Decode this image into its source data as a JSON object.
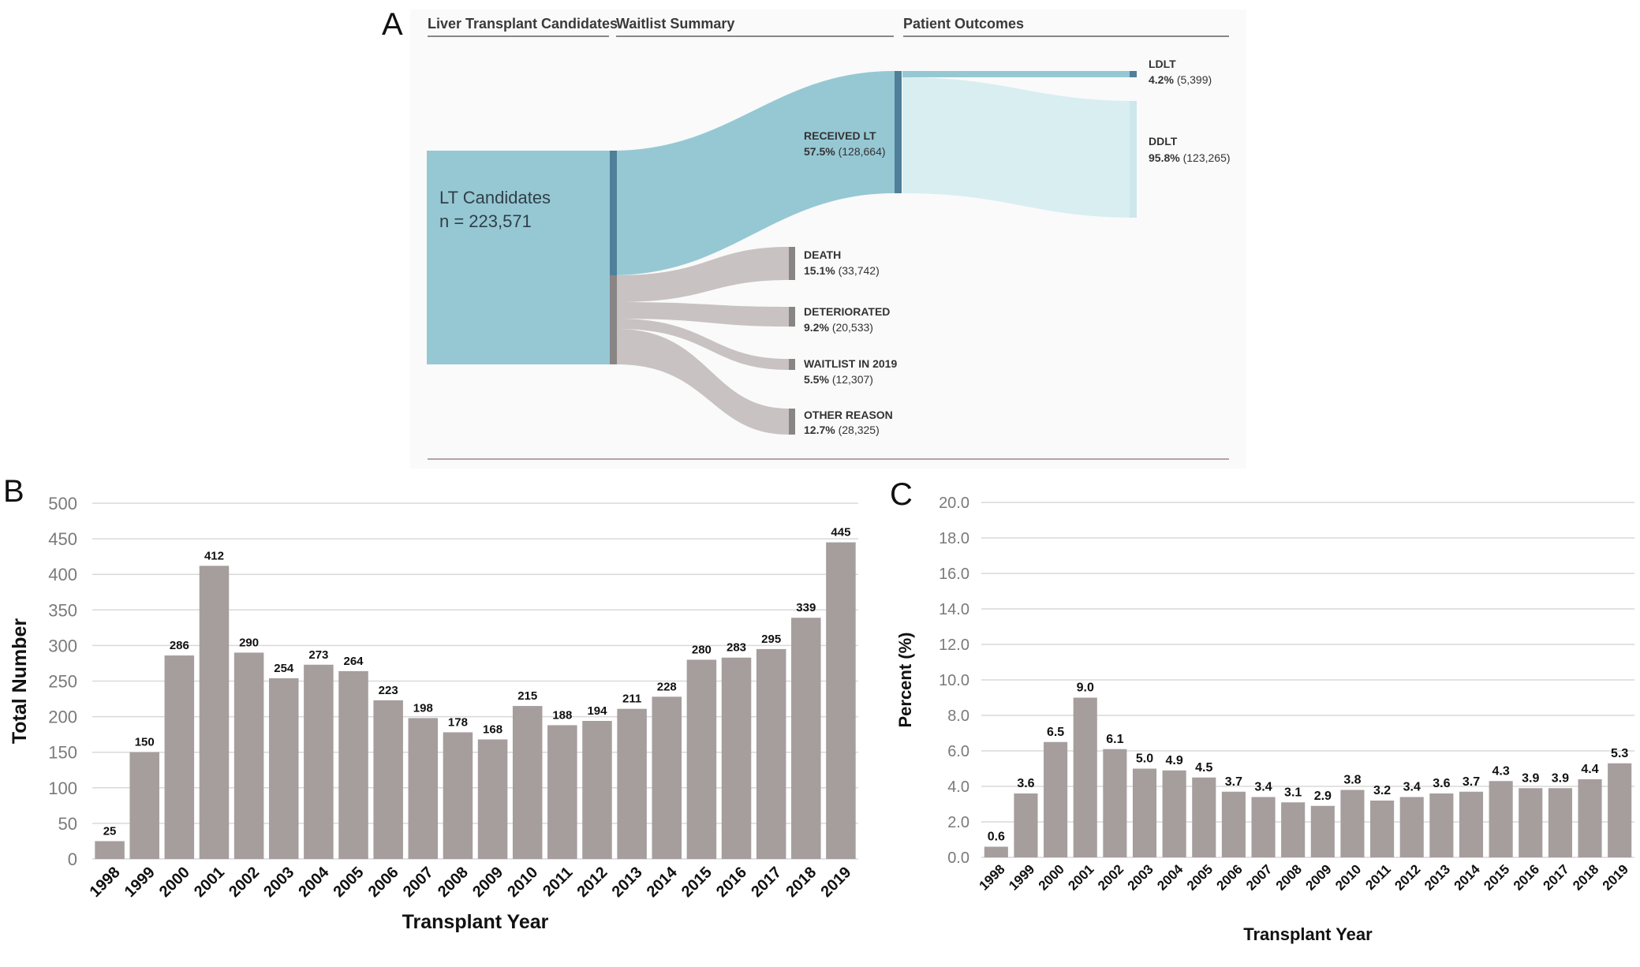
{
  "panels": {
    "a": "A",
    "b": "B",
    "c": "C"
  },
  "sankey": {
    "headers": [
      "Liver Transplant Candidates",
      "Waitlist Summary",
      "Patient Outcomes"
    ],
    "source": {
      "label": "LT Candidates",
      "n": "n = 223,571"
    },
    "received": {
      "label": "RECEIVED LT",
      "pct": "57.5%",
      "count": "(128,664)"
    },
    "outcomes": [
      {
        "label": "DEATH",
        "pct": "15.1%",
        "count": "(33,742)"
      },
      {
        "label": "DETERIORATED",
        "pct": "9.2%",
        "count": "(20,533)"
      },
      {
        "label": "WAITLIST IN 2019",
        "pct": "5.5%",
        "count": "(12,307)"
      },
      {
        "label": "OTHER REASON",
        "pct": "12.7%",
        "count": "(28,325)"
      }
    ],
    "transplant_types": [
      {
        "label": "LDLT",
        "pct": "4.2%",
        "count": "(5,399)"
      },
      {
        "label": "DDLT",
        "pct": "95.8%",
        "count": "(123,265)"
      }
    ],
    "colors": {
      "blue": "#96c8d4",
      "blue_dark": "#4f7f99",
      "light_blue": "#cde7ec",
      "grey": "#c8c2c2",
      "grey_dark": "#8a8585"
    }
  },
  "chart_data": [
    {
      "type": "bar",
      "panel": "B",
      "title": "",
      "xlabel": "Transplant Year",
      "ylabel": "Total Number",
      "ylim": [
        0,
        500
      ],
      "yticks": [
        0,
        50,
        100,
        150,
        200,
        250,
        300,
        350,
        400,
        450,
        500
      ],
      "ytick_labels": [
        "0",
        "50",
        "100",
        "150",
        "200",
        "250",
        "300",
        "350",
        "400",
        "450",
        "500"
      ],
      "categories": [
        "1998",
        "1999",
        "2000",
        "2001",
        "2002",
        "2003",
        "2004",
        "2005",
        "2006",
        "2007",
        "2008",
        "2009",
        "2010",
        "2011",
        "2012",
        "2013",
        "2014",
        "2015",
        "2016",
        "2017",
        "2018",
        "2019"
      ],
      "values": [
        25,
        150,
        286,
        412,
        290,
        254,
        273,
        264,
        223,
        198,
        178,
        168,
        215,
        188,
        194,
        211,
        228,
        280,
        283,
        295,
        339,
        445
      ],
      "value_labels": [
        "25",
        "150",
        "286",
        "412",
        "290",
        "254",
        "273",
        "264",
        "223",
        "198",
        "178",
        "168",
        "215",
        "188",
        "194",
        "211",
        "228",
        "280",
        "283",
        "295",
        "339",
        "445"
      ],
      "grid": true,
      "color": "#a69d9d"
    },
    {
      "type": "bar",
      "panel": "C",
      "title": "",
      "xlabel": "Transplant Year",
      "ylabel": "Percent (%)",
      "ylim": [
        0,
        20
      ],
      "yticks": [
        0,
        2,
        4,
        6,
        8,
        10,
        12,
        14,
        16,
        18,
        20
      ],
      "ytick_labels": [
        "0.0",
        "2.0",
        "4.0",
        "6.0",
        "8.0",
        "10.0",
        "12.0",
        "14.0",
        "16.0",
        "18.0",
        "20.0"
      ],
      "categories": [
        "1998",
        "1999",
        "2000",
        "2001",
        "2002",
        "2003",
        "2004",
        "2005",
        "2006",
        "2007",
        "2008",
        "2009",
        "2010",
        "2011",
        "2012",
        "2013",
        "2014",
        "2015",
        "2016",
        "2017",
        "2018",
        "2019"
      ],
      "values": [
        0.6,
        3.6,
        6.5,
        9.0,
        6.1,
        5.0,
        4.9,
        4.5,
        3.7,
        3.4,
        3.1,
        2.9,
        3.8,
        3.2,
        3.4,
        3.6,
        3.7,
        4.3,
        3.9,
        3.9,
        4.4,
        5.3
      ],
      "value_labels": [
        "0.6",
        "3.6",
        "6.5",
        "9.0",
        "6.1",
        "5.0",
        "4.9",
        "4.5",
        "3.7",
        "3.4",
        "3.1",
        "2.9",
        "3.8",
        "3.2",
        "3.4",
        "3.6",
        "3.7",
        "4.3",
        "3.9",
        "3.9",
        "4.4",
        "5.3"
      ],
      "grid": true,
      "color": "#a69d9d"
    }
  ]
}
